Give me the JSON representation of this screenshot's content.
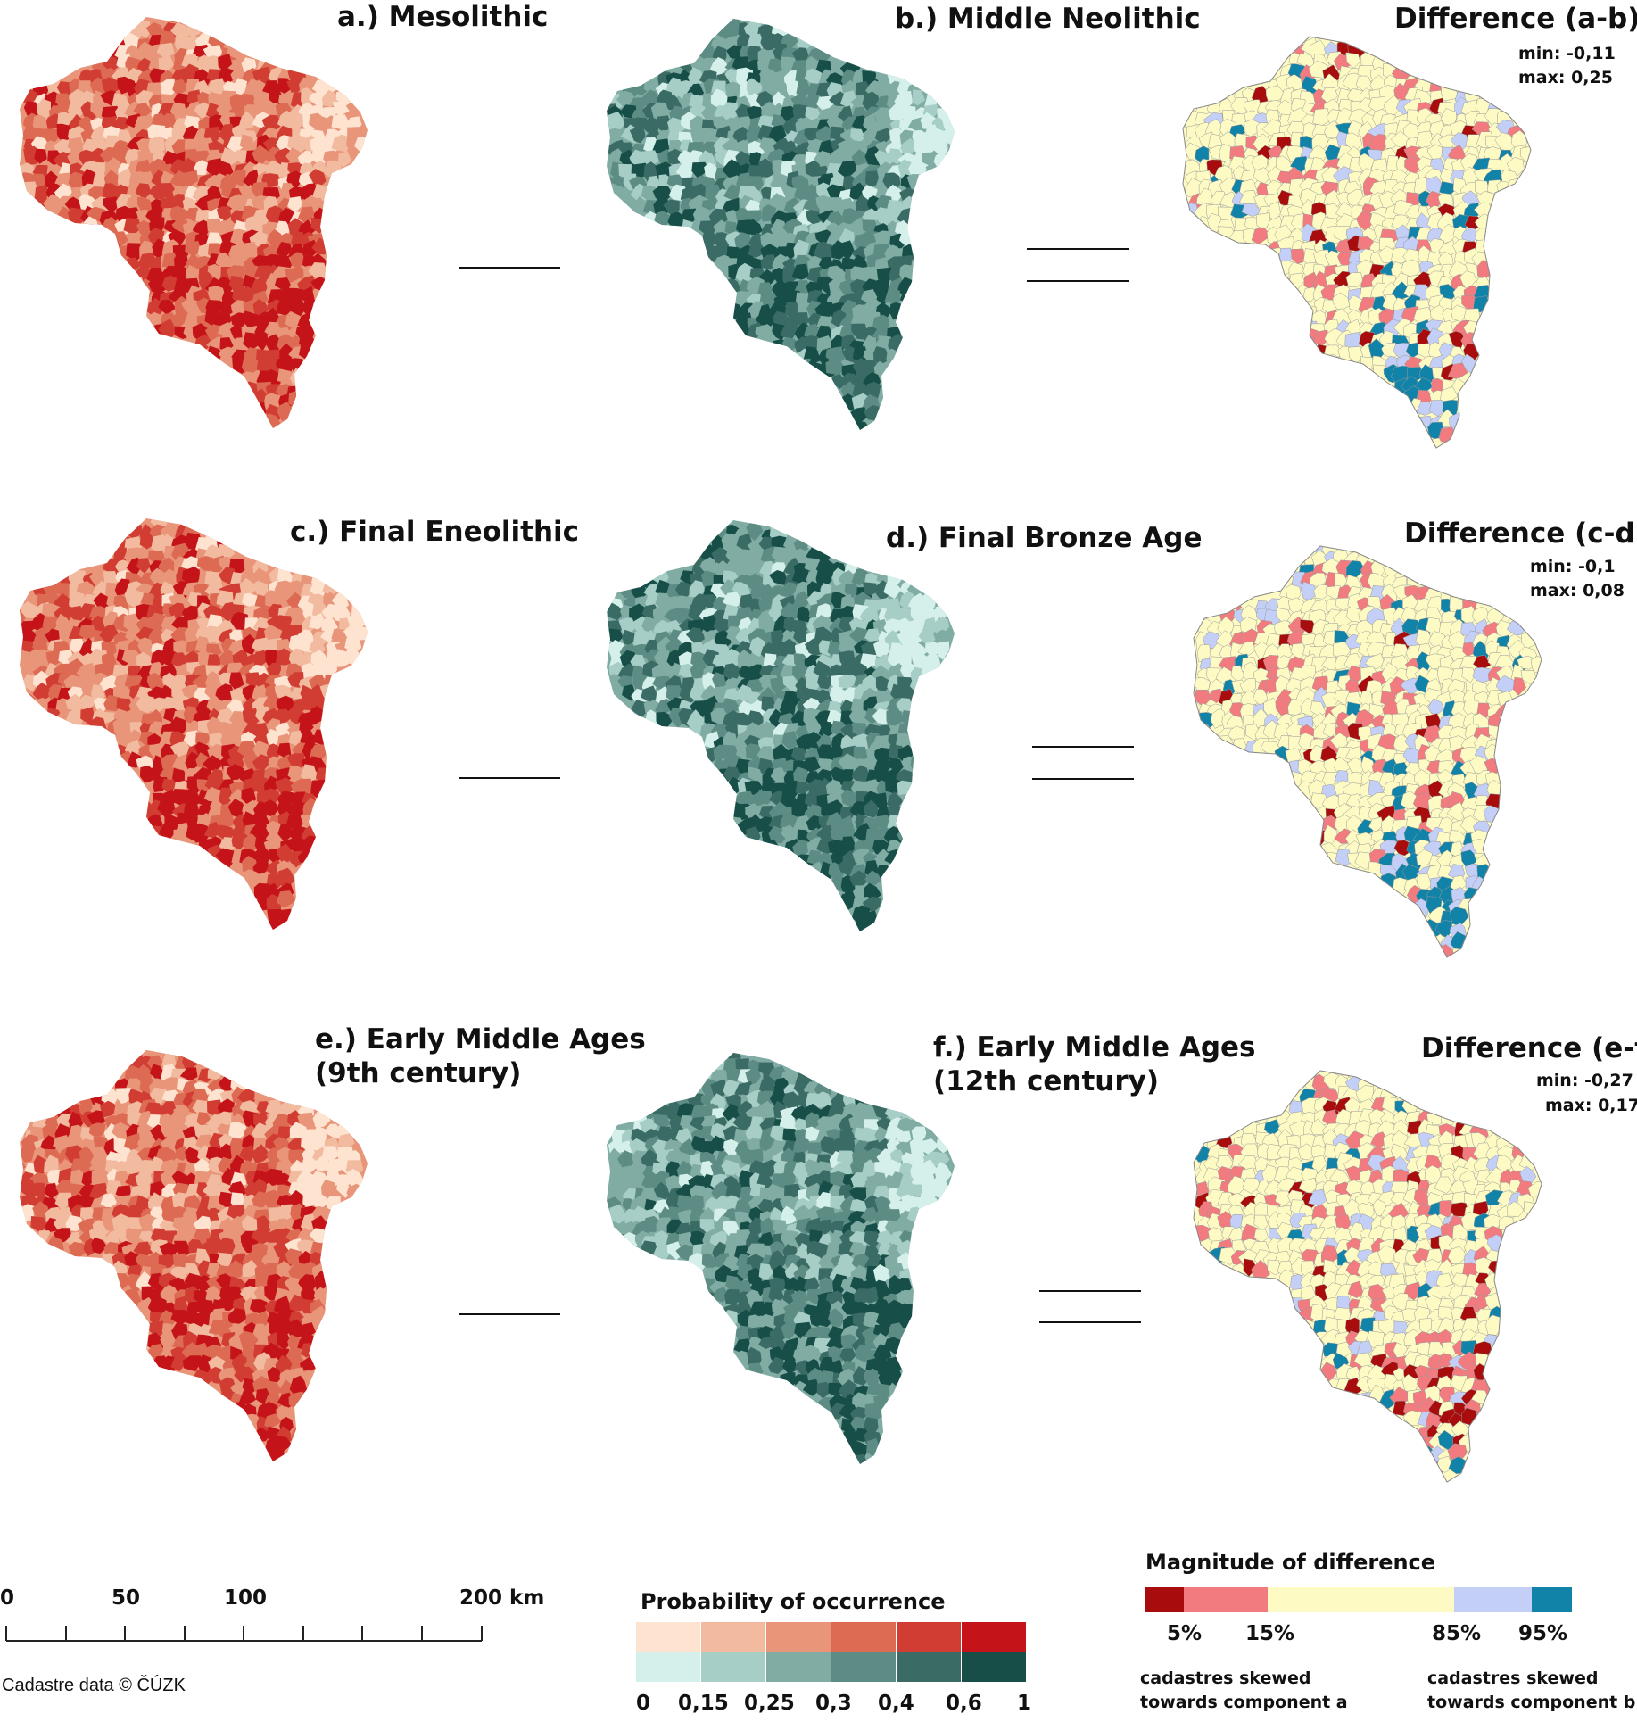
{
  "panels": [
    {
      "title_lines": [
        "a.) Mesolithic"
      ],
      "palette": "red",
      "variant": 1
    },
    {
      "title_lines": [
        "b.) Middle Neolithic"
      ],
      "palette": "green",
      "variant": 2
    },
    {
      "title_lines": [
        "Difference (a-b)"
      ],
      "min": "min: -0,11",
      "max": "max: 0,25",
      "palette": "diff",
      "variant": 3
    },
    {
      "title_lines": [
        "c.) Final Eneolithic"
      ],
      "palette": "red",
      "variant": 4
    },
    {
      "title_lines": [
        "d.) Final Bronze Age"
      ],
      "palette": "green",
      "variant": 5
    },
    {
      "title_lines": [
        "Difference (c-d)"
      ],
      "min": "min: -0,1",
      "max": "max: 0,08",
      "palette": "diff",
      "variant": 6
    },
    {
      "title_lines": [
        "e.) Early Middle Ages",
        "(9th century)"
      ],
      "palette": "red",
      "variant": 7
    },
    {
      "title_lines": [
        "f.) Early Middle Ages",
        "(12th century)"
      ],
      "palette": "green",
      "variant": 8
    },
    {
      "title_lines": [
        "Difference (e-f)"
      ],
      "min": "min: -0,27",
      "max": "max: 0,17",
      "palette": "diff",
      "variant": 9
    }
  ],
  "operators": [
    "minus",
    "equals"
  ],
  "scale_bar": {
    "labels": [
      "0",
      "50",
      "100",
      "200 km"
    ]
  },
  "copyright": "Cadastre data © ČÚZK",
  "probability_legend": {
    "title": "Probability of occurrence",
    "red_colors": [
      "#fde3d0",
      "#f2bba0",
      "#e8957a",
      "#dd6a52",
      "#d13d32",
      "#c4141a"
    ],
    "green_colors": [
      "#d5f0ea",
      "#a6cdc6",
      "#80aca4",
      "#5d8c84",
      "#3a6b64",
      "#174f48"
    ],
    "breaks": [
      "0",
      "0,15",
      "0,25",
      "0,3",
      "0,4",
      "0,6",
      "1"
    ]
  },
  "difference_legend": {
    "title": "Magnitude of difference",
    "colors": [
      "#a80c0c",
      "#f27b80",
      "#fdfbc3",
      "#c3cff7",
      "#1283a8"
    ],
    "labels": [
      "5%",
      "15%",
      "85%",
      "95%"
    ],
    "note_a": "cadastres skewed towards component a",
    "note_b": "cadastres skewed towards component b"
  }
}
